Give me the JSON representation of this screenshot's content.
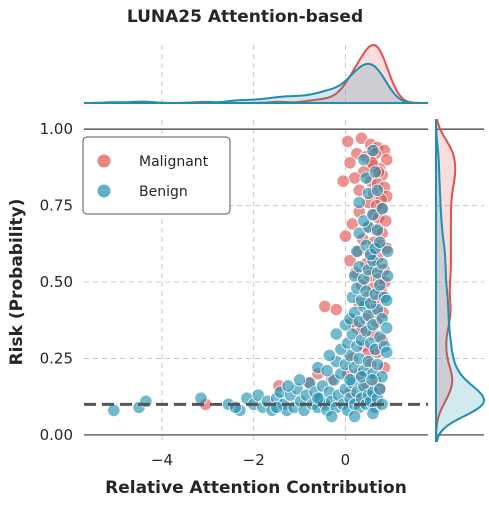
{
  "chart_data": {
    "type": "scatter",
    "title": "LUNA25 Attention-based",
    "xlabel": "Relative Attention Contribution",
    "ylabel": "Risk (Probability)",
    "xlim": [
      -5.7,
      1.8
    ],
    "ylim": [
      -0.02,
      1.03
    ],
    "x_ticks": [
      {
        "v": -4,
        "label": "−4"
      },
      {
        "v": -2,
        "label": "−2"
      },
      {
        "v": 0,
        "label": "0"
      }
    ],
    "y_ticks": [
      {
        "v": 0.0,
        "label": "0.00"
      },
      {
        "v": 0.25,
        "label": "0.25"
      },
      {
        "v": 0.5,
        "label": "0.50"
      },
      {
        "v": 0.75,
        "label": "0.75"
      },
      {
        "v": 1.0,
        "label": "1.00"
      }
    ],
    "grid": true,
    "threshold": 0.1,
    "legend_position": "top-left",
    "series": [
      {
        "name": "Malignant",
        "color": "#e1504e",
        "points": [
          [
            0.05,
            0.96
          ],
          [
            0.35,
            0.97
          ],
          [
            0.55,
            0.95
          ],
          [
            0.7,
            0.94
          ],
          [
            0.85,
            0.93
          ],
          [
            0.25,
            0.92
          ],
          [
            0.45,
            0.91
          ],
          [
            0.65,
            0.92
          ],
          [
            0.9,
            0.9
          ],
          [
            0.1,
            0.89
          ],
          [
            0.6,
            0.88
          ],
          [
            0.75,
            0.87
          ],
          [
            0.4,
            0.86
          ],
          [
            0.8,
            0.85
          ],
          [
            0.2,
            0.84
          ],
          [
            0.55,
            0.83
          ],
          [
            0.7,
            0.82
          ],
          [
            0.85,
            0.81
          ],
          [
            0.3,
            0.8
          ],
          [
            0.62,
            0.79
          ],
          [
            0.9,
            0.78
          ],
          [
            0.78,
            0.77
          ],
          [
            -0.05,
            0.83
          ],
          [
            0.5,
            0.76
          ],
          [
            0.68,
            0.75
          ],
          [
            0.82,
            0.74
          ],
          [
            0.3,
            0.73
          ],
          [
            0.58,
            0.72
          ],
          [
            0.72,
            0.71
          ],
          [
            0.88,
            0.7
          ],
          [
            0.15,
            0.69
          ],
          [
            0.48,
            0.68
          ],
          [
            0.66,
            0.67
          ],
          [
            0.8,
            0.66
          ],
          [
            0.0,
            0.65
          ],
          [
            0.38,
            0.64
          ],
          [
            0.62,
            0.63
          ],
          [
            0.76,
            0.62
          ],
          [
            0.9,
            0.61
          ],
          [
            0.28,
            0.6
          ],
          [
            0.55,
            0.59
          ],
          [
            0.7,
            0.58
          ],
          [
            0.1,
            0.57
          ],
          [
            0.45,
            0.56
          ],
          [
            0.65,
            0.55
          ],
          [
            0.84,
            0.54
          ],
          [
            0.22,
            0.53
          ],
          [
            0.52,
            0.52
          ],
          [
            0.72,
            0.51
          ],
          [
            0.86,
            0.5
          ],
          [
            0.35,
            0.49
          ],
          [
            0.6,
            0.48
          ],
          [
            0.78,
            0.47
          ],
          [
            0.5,
            0.45
          ],
          [
            0.7,
            0.44
          ],
          [
            0.3,
            0.43
          ],
          [
            -0.45,
            0.42
          ],
          [
            -0.2,
            0.41
          ],
          [
            0.62,
            0.41
          ],
          [
            0.82,
            0.4
          ],
          [
            0.45,
            0.38
          ],
          [
            0.68,
            0.37
          ],
          [
            0.25,
            0.35
          ],
          [
            0.6,
            0.33
          ],
          [
            0.8,
            0.31
          ],
          [
            0.4,
            0.29
          ],
          [
            0.7,
            0.27
          ],
          [
            0.15,
            0.25
          ],
          [
            0.55,
            0.23
          ],
          [
            0.85,
            0.22
          ],
          [
            0.3,
            0.2
          ],
          [
            0.65,
            0.18
          ],
          [
            -0.6,
            0.2
          ],
          [
            0.45,
            0.16
          ],
          [
            0.75,
            0.15
          ],
          [
            0.1,
            0.14
          ],
          [
            0.55,
            0.12
          ],
          [
            0.3,
            0.11
          ],
          [
            -3.05,
            0.1
          ],
          [
            -1.45,
            0.16
          ],
          [
            -0.8,
            0.17
          ],
          [
            -0.3,
            0.18
          ],
          [
            0.05,
            0.2
          ],
          [
            0.5,
            0.27
          ],
          [
            0.35,
            0.34
          ],
          [
            0.15,
            0.37
          ],
          [
            0.72,
            0.86
          ],
          [
            0.58,
            0.89
          ]
        ]
      },
      {
        "name": "Benign",
        "color": "#1f8fb0",
        "points": [
          [
            -5.05,
            0.08
          ],
          [
            -4.5,
            0.09
          ],
          [
            -4.35,
            0.11
          ],
          [
            -3.15,
            0.12
          ],
          [
            -2.55,
            0.1
          ],
          [
            -2.3,
            0.08
          ],
          [
            -2.15,
            0.12
          ],
          [
            -2.0,
            0.1
          ],
          [
            -1.9,
            0.13
          ],
          [
            -1.8,
            0.09
          ],
          [
            -1.7,
            0.11
          ],
          [
            -1.6,
            0.08
          ],
          [
            -1.5,
            0.12
          ],
          [
            -1.42,
            0.14
          ],
          [
            -1.35,
            0.1
          ],
          [
            -1.28,
            0.08
          ],
          [
            -1.2,
            0.13
          ],
          [
            -1.12,
            0.09
          ],
          [
            -1.05,
            0.15
          ],
          [
            -0.98,
            0.11
          ],
          [
            -0.9,
            0.08
          ],
          [
            -0.85,
            0.13
          ],
          [
            -0.78,
            0.17
          ],
          [
            -0.72,
            0.1
          ],
          [
            -0.66,
            0.14
          ],
          [
            -0.6,
            0.09
          ],
          [
            -0.55,
            0.12
          ],
          [
            -0.5,
            0.16
          ],
          [
            -0.45,
            0.1
          ],
          [
            -0.4,
            0.08
          ],
          [
            -0.35,
            0.14
          ],
          [
            -0.3,
            0.11
          ],
          [
            -0.25,
            0.18
          ],
          [
            -0.2,
            0.09
          ],
          [
            -0.15,
            0.13
          ],
          [
            -0.1,
            0.2
          ],
          [
            -0.05,
            0.1
          ],
          [
            0.0,
            0.15
          ],
          [
            0.05,
            0.08
          ],
          [
            0.1,
            0.12
          ],
          [
            0.15,
            0.17
          ],
          [
            0.2,
            0.1
          ],
          [
            0.25,
            0.14
          ],
          [
            0.3,
            0.09
          ],
          [
            0.35,
            0.12
          ],
          [
            0.4,
            0.16
          ],
          [
            0.45,
            0.1
          ],
          [
            0.5,
            0.13
          ],
          [
            0.55,
            0.11
          ],
          [
            0.6,
            0.14
          ],
          [
            0.65,
            0.09
          ],
          [
            0.7,
            0.12
          ],
          [
            0.75,
            0.15
          ],
          [
            0.8,
            0.1
          ],
          [
            -0.6,
            0.22
          ],
          [
            -0.4,
            0.21
          ],
          [
            -0.2,
            0.24
          ],
          [
            0.0,
            0.23
          ],
          [
            0.1,
            0.26
          ],
          [
            0.2,
            0.22
          ],
          [
            0.3,
            0.25
          ],
          [
            0.4,
            0.21
          ],
          [
            0.5,
            0.24
          ],
          [
            0.6,
            0.2
          ],
          [
            0.7,
            0.23
          ],
          [
            0.8,
            0.19
          ],
          [
            -0.1,
            0.28
          ],
          [
            0.05,
            0.3
          ],
          [
            0.15,
            0.33
          ],
          [
            0.25,
            0.29
          ],
          [
            0.35,
            0.31
          ],
          [
            0.45,
            0.34
          ],
          [
            0.55,
            0.3
          ],
          [
            0.65,
            0.28
          ],
          [
            0.75,
            0.32
          ],
          [
            0.85,
            0.29
          ],
          [
            0.0,
            0.36
          ],
          [
            0.1,
            0.38
          ],
          [
            0.2,
            0.4
          ],
          [
            0.3,
            0.37
          ],
          [
            0.4,
            0.42
          ],
          [
            0.5,
            0.39
          ],
          [
            0.6,
            0.36
          ],
          [
            0.7,
            0.41
          ],
          [
            0.8,
            0.38
          ],
          [
            -0.2,
            0.33
          ],
          [
            0.15,
            0.45
          ],
          [
            0.25,
            0.48
          ],
          [
            0.35,
            0.44
          ],
          [
            0.45,
            0.47
          ],
          [
            0.55,
            0.43
          ],
          [
            0.65,
            0.46
          ],
          [
            0.75,
            0.49
          ],
          [
            0.85,
            0.45
          ],
          [
            0.2,
            0.52
          ],
          [
            0.3,
            0.55
          ],
          [
            0.4,
            0.51
          ],
          [
            0.5,
            0.54
          ],
          [
            0.6,
            0.57
          ],
          [
            0.7,
            0.53
          ],
          [
            0.8,
            0.56
          ],
          [
            0.25,
            0.6
          ],
          [
            0.45,
            0.62
          ],
          [
            0.55,
            0.59
          ],
          [
            0.65,
            0.61
          ],
          [
            0.75,
            0.63
          ],
          [
            0.3,
            0.66
          ],
          [
            0.5,
            0.68
          ],
          [
            0.7,
            0.67
          ],
          [
            0.4,
            0.7
          ],
          [
            0.6,
            0.72
          ],
          [
            0.8,
            0.74
          ],
          [
            0.3,
            0.76
          ],
          [
            0.5,
            0.79
          ],
          [
            0.7,
            0.8
          ],
          [
            0.45,
            0.84
          ],
          [
            0.65,
            0.86
          ],
          [
            0.4,
            0.9
          ],
          [
            0.6,
            0.93
          ],
          [
            -0.6,
            0.12
          ],
          [
            -1.0,
            0.18
          ],
          [
            -1.5,
            0.09
          ],
          [
            -0.3,
            0.06
          ],
          [
            0.2,
            0.06
          ],
          [
            0.6,
            0.07
          ],
          [
            -2.4,
            0.09
          ],
          [
            -1.25,
            0.16
          ],
          [
            0.9,
            0.27
          ],
          [
            0.9,
            0.35
          ],
          [
            0.9,
            0.44
          ],
          [
            0.92,
            0.52
          ],
          [
            0.92,
            0.6
          ],
          [
            0.1,
            0.18
          ],
          [
            0.35,
            0.19
          ],
          [
            0.58,
            0.18
          ],
          [
            -0.35,
            0.26
          ]
        ]
      }
    ],
    "density_legend_note": ""
  }
}
